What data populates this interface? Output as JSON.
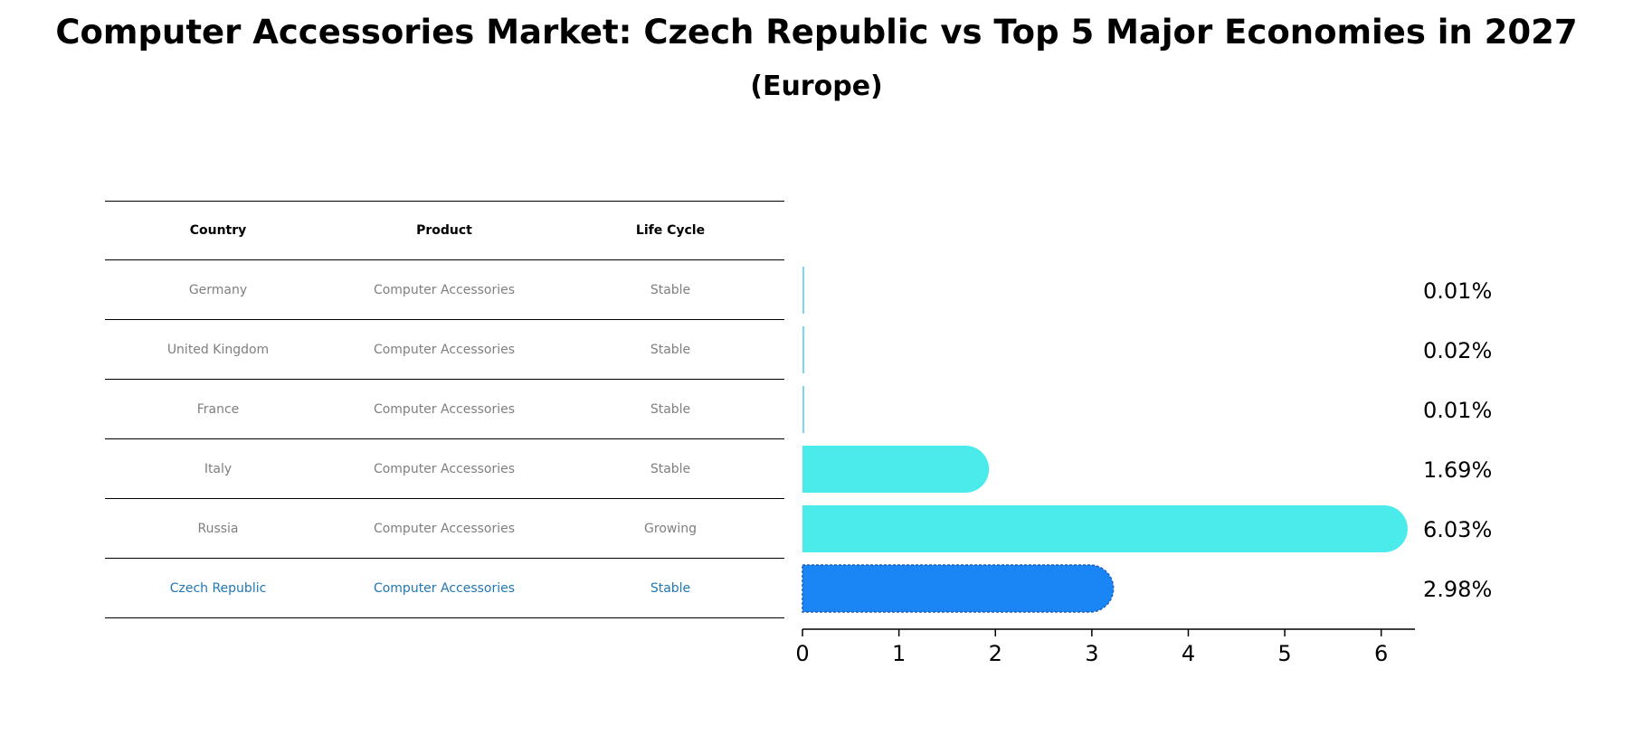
{
  "title": "Computer Accessories Market: Czech Republic vs Top 5 Major Economies in 2027",
  "subtitle": "(Europe)",
  "table": {
    "headers": [
      "Country",
      "Product",
      "Life Cycle"
    ],
    "rows": [
      [
        "Germany",
        "Computer Accessories",
        "Stable"
      ],
      [
        "United Kingdom",
        "Computer Accessories",
        "Stable"
      ],
      [
        "France",
        "Computer Accessories",
        "Stable"
      ],
      [
        "Italy",
        "Computer Accessories",
        "Stable"
      ],
      [
        "Russia",
        "Computer Accessories",
        "Growing"
      ],
      [
        "Czech Republic",
        "Computer Accessories",
        "Stable"
      ]
    ]
  },
  "chart_data": {
    "type": "bar",
    "orientation": "horizontal",
    "categories": [
      "Germany",
      "United Kingdom",
      "France",
      "Italy",
      "Russia",
      "Czech Republic"
    ],
    "values": [
      0.01,
      0.02,
      0.01,
      1.69,
      6.03,
      2.98
    ],
    "value_labels": [
      "0.01%",
      "0.02%",
      "0.01%",
      "1.69%",
      "6.03%",
      "2.98%"
    ],
    "xlim": [
      0,
      6.35
    ],
    "xticks": [
      0,
      1,
      2,
      3,
      4,
      5,
      6
    ],
    "highlight": "Czech Republic",
    "colors": {
      "default": "#4bebeb",
      "highlight": "#1a86f5",
      "thin": "#7fd4f0"
    },
    "grid": false
  }
}
